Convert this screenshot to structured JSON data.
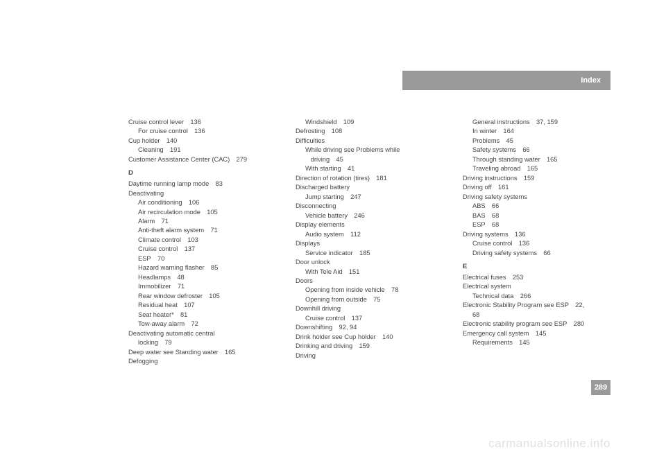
{
  "header": {
    "title": "Index"
  },
  "pageNumber": "289",
  "watermark": "carmanualsonline.info",
  "col1": [
    {
      "t": "Cruise control lever 136",
      "s": 0
    },
    {
      "t": "For cruise control 136",
      "s": 1
    },
    {
      "t": "Cup holder 140",
      "s": 0
    },
    {
      "t": "Cleaning 191",
      "s": 1
    },
    {
      "t": "Customer Assistance Center (CAC) 279",
      "s": 0
    },
    {
      "t": "D",
      "letter": true
    },
    {
      "t": "Daytime running lamp mode 83",
      "s": 0
    },
    {
      "t": "Deactivating",
      "s": 0
    },
    {
      "t": "Air conditioning 106",
      "s": 1
    },
    {
      "t": "Air recirculation mode 105",
      "s": 1
    },
    {
      "t": "Alarm 71",
      "s": 1
    },
    {
      "t": "Anti-theft alarm system 71",
      "s": 1
    },
    {
      "t": "Climate control 103",
      "s": 1
    },
    {
      "t": "Cruise control 137",
      "s": 1
    },
    {
      "t": "ESP 70",
      "s": 1
    },
    {
      "t": "Hazard warning flasher 85",
      "s": 1
    },
    {
      "t": "Headlamps 48",
      "s": 1
    },
    {
      "t": "Immobilizer 71",
      "s": 1
    },
    {
      "t": "Rear window defroster 105",
      "s": 1
    },
    {
      "t": "Residual heat 107",
      "s": 1
    },
    {
      "t": "Seat heater* 81",
      "s": 1
    },
    {
      "t": "Tow-away alarm 72",
      "s": 1
    },
    {
      "t": "Deactivating automatic central",
      "s": 0
    },
    {
      "t": "locking 79",
      "s": 1
    },
    {
      "t": "Deep water see Standing water 165",
      "s": 0
    },
    {
      "t": "Defogging",
      "s": 0
    }
  ],
  "col2": [
    {
      "t": "Windshield 109",
      "s": 1
    },
    {
      "t": "Defrosting 108",
      "s": 0
    },
    {
      "t": "Difficulties",
      "s": 0
    },
    {
      "t": "While driving see Problems while",
      "s": 1
    },
    {
      "t": "   driving 45",
      "s": 1
    },
    {
      "t": "With starting 41",
      "s": 1
    },
    {
      "t": "Direction of rotation (tires) 181",
      "s": 0
    },
    {
      "t": "Discharged battery",
      "s": 0
    },
    {
      "t": "Jump starting 247",
      "s": 1
    },
    {
      "t": "Disconnecting",
      "s": 0
    },
    {
      "t": "Vehicle battery 246",
      "s": 1
    },
    {
      "t": "Display elements",
      "s": 0
    },
    {
      "t": "Audio system 112",
      "s": 1
    },
    {
      "t": "Displays",
      "s": 0
    },
    {
      "t": "Service indicator 185",
      "s": 1
    },
    {
      "t": "Door unlock",
      "s": 0
    },
    {
      "t": "With Tele Aid 151",
      "s": 1
    },
    {
      "t": "Doors",
      "s": 0
    },
    {
      "t": "Opening from inside vehicle 78",
      "s": 1
    },
    {
      "t": "Opening from outside 75",
      "s": 1
    },
    {
      "t": "Downhill driving",
      "s": 0
    },
    {
      "t": "Cruise control 137",
      "s": 1
    },
    {
      "t": "Downshifting 92, 94",
      "s": 0
    },
    {
      "t": "Drink holder see Cup holder 140",
      "s": 0
    },
    {
      "t": "Drinking and driving 159",
      "s": 0
    },
    {
      "t": "Driving",
      "s": 0
    }
  ],
  "col3": [
    {
      "t": "General instructions 37, 159",
      "s": 1
    },
    {
      "t": "In winter 164",
      "s": 1
    },
    {
      "t": "Problems 45",
      "s": 1
    },
    {
      "t": "Safety systems 66",
      "s": 1
    },
    {
      "t": "Through standing water 165",
      "s": 1
    },
    {
      "t": "Traveling abroad 165",
      "s": 1
    },
    {
      "t": "Driving instructions 159",
      "s": 0
    },
    {
      "t": "Driving off 161",
      "s": 0
    },
    {
      "t": "Driving safety systems",
      "s": 0
    },
    {
      "t": "ABS 66",
      "s": 1
    },
    {
      "t": "BAS 68",
      "s": 1
    },
    {
      "t": "ESP 68",
      "s": 1
    },
    {
      "t": "Driving systems 136",
      "s": 0
    },
    {
      "t": "Cruise control 136",
      "s": 1
    },
    {
      "t": "Driving safety systems 66",
      "s": 1
    },
    {
      "t": "E",
      "letter": true
    },
    {
      "t": "Electrical fuses 253",
      "s": 0
    },
    {
      "t": "Electrical system",
      "s": 0
    },
    {
      "t": "Technical data 266",
      "s": 1
    },
    {
      "t": "Electronic Stability Program see ESP 22,",
      "s": 0
    },
    {
      "t": "68",
      "s": 1
    },
    {
      "t": "Electronic stability program see ESP 280",
      "s": 0
    },
    {
      "t": "Emergency call system 145",
      "s": 0
    },
    {
      "t": "Requirements 145",
      "s": 1
    }
  ]
}
